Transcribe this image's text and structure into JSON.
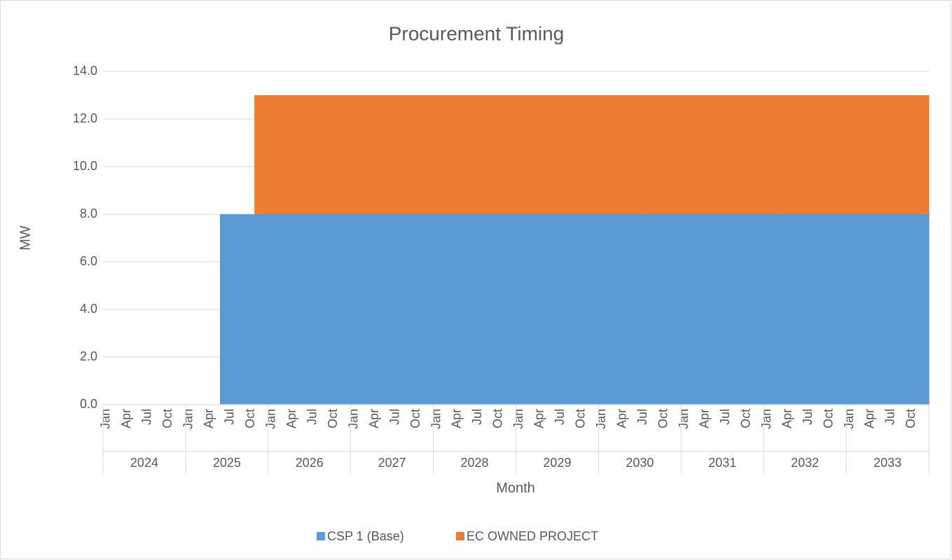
{
  "chart_data": {
    "type": "area",
    "stacked": true,
    "title": "Procurement Timing",
    "x_label": "Month",
    "y_label": "MW",
    "categories": [
      "Jan",
      null,
      null,
      "Apr",
      null,
      null,
      "Jul",
      null,
      null,
      "Oct",
      null,
      null,
      "Jan",
      null,
      null,
      "Apr",
      null,
      null,
      "Jul",
      null,
      null,
      "Oct",
      null,
      null,
      "Jan",
      null,
      null,
      "Apr",
      null,
      null,
      "Jul",
      null,
      null,
      "Oct",
      null,
      null,
      "Jan",
      null,
      null,
      "Apr",
      null,
      null,
      "Jul",
      null,
      null,
      "Oct",
      null,
      null,
      "Jan",
      null,
      null,
      "Apr",
      null,
      null,
      "Jul",
      null,
      null,
      "Oct",
      null,
      null,
      "Jan",
      null,
      null,
      "Apr",
      null,
      null,
      "Jul",
      null,
      null,
      "Oct",
      null,
      null,
      "Jan",
      null,
      null,
      "Apr",
      null,
      null,
      "Jul",
      null,
      null,
      "Oct",
      null,
      null,
      "Jan",
      null,
      null,
      "Apr",
      null,
      null,
      "Jul",
      null,
      null,
      "Oct",
      null,
      null,
      "Jan",
      null,
      null,
      "Apr",
      null,
      null,
      "Jul",
      null,
      null,
      "Oct",
      null,
      null,
      "Jan",
      null,
      null,
      "Apr",
      null,
      null,
      "Jul",
      null,
      null,
      "Oct",
      null,
      null
    ],
    "years": [
      "2024",
      "2025",
      "2026",
      "2027",
      "2028",
      "2029",
      "2030",
      "2031",
      "2032",
      "2033"
    ],
    "series": [
      {
        "name": "CSP 1 (Base)",
        "color": "#5b9bd5",
        "values": [
          0,
          0,
          0,
          0,
          0,
          0,
          0,
          0,
          0,
          0,
          0,
          0,
          0,
          0,
          0,
          0,
          0,
          8,
          8,
          8,
          8,
          8,
          8,
          8,
          8,
          8,
          8,
          8,
          8,
          8,
          8,
          8,
          8,
          8,
          8,
          8,
          8,
          8,
          8,
          8,
          8,
          8,
          8,
          8,
          8,
          8,
          8,
          8,
          8,
          8,
          8,
          8,
          8,
          8,
          8,
          8,
          8,
          8,
          8,
          8,
          8,
          8,
          8,
          8,
          8,
          8,
          8,
          8,
          8,
          8,
          8,
          8,
          8,
          8,
          8,
          8,
          8,
          8,
          8,
          8,
          8,
          8,
          8,
          8,
          8,
          8,
          8,
          8,
          8,
          8,
          8,
          8,
          8,
          8,
          8,
          8,
          8,
          8,
          8,
          8,
          8,
          8,
          8,
          8,
          8,
          8,
          8,
          8,
          8,
          8,
          8,
          8,
          8,
          8,
          8,
          8,
          8,
          8,
          8,
          8
        ]
      },
      {
        "name": "EC OWNED PROJECT",
        "color": "#ed7d31",
        "values": [
          0,
          0,
          0,
          0,
          0,
          0,
          0,
          0,
          0,
          0,
          0,
          0,
          0,
          0,
          0,
          0,
          0,
          0,
          0,
          0,
          0,
          0,
          5,
          5,
          5,
          5,
          5,
          5,
          5,
          5,
          5,
          5,
          5,
          5,
          5,
          5,
          5,
          5,
          5,
          5,
          5,
          5,
          5,
          5,
          5,
          5,
          5,
          5,
          5,
          5,
          5,
          5,
          5,
          5,
          5,
          5,
          5,
          5,
          5,
          5,
          5,
          5,
          5,
          5,
          5,
          5,
          5,
          5,
          5,
          5,
          5,
          5,
          5,
          5,
          5,
          5,
          5,
          5,
          5,
          5,
          5,
          5,
          5,
          5,
          5,
          5,
          5,
          5,
          5,
          5,
          5,
          5,
          5,
          5,
          5,
          5,
          5,
          5,
          5,
          5,
          5,
          5,
          5,
          5,
          5,
          5,
          5,
          5,
          5,
          5,
          5,
          5,
          5,
          5,
          5,
          5,
          5,
          5,
          5,
          5
        ]
      }
    ],
    "ylim": [
      0,
      14
    ],
    "yticks": [
      {
        "value": 0,
        "label": "0.0"
      },
      {
        "value": 2,
        "label": "2.0"
      },
      {
        "value": 4,
        "label": "4.0"
      },
      {
        "value": 6,
        "label": "6.0"
      },
      {
        "value": 8,
        "label": "8.0"
      },
      {
        "value": 10,
        "label": "10.0"
      },
      {
        "value": 12,
        "label": "12.0"
      },
      {
        "value": 14,
        "label": "14.0"
      }
    ],
    "grid": true,
    "legend": "bottom"
  }
}
